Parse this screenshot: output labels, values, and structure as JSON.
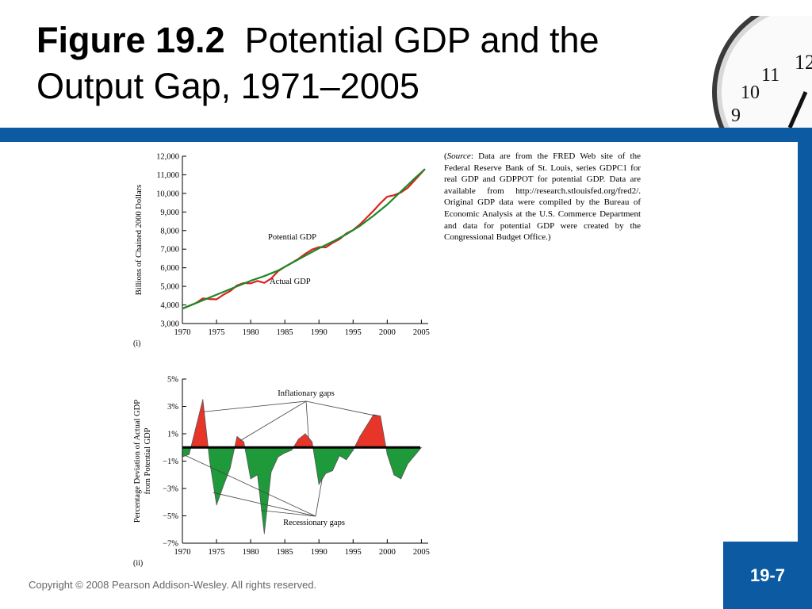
{
  "slide": {
    "title_bold": "Figure 19.2",
    "title_rest": "Potential GDP and the Output Gap, 1971–2005",
    "copyright": "Copyright © 2008 Pearson Addison-Wesley. All rights reserved.",
    "page_number": "19-7",
    "accent_color": "#0b5aa2"
  },
  "source_note": {
    "prefix": "(",
    "source_word": "Source",
    "body": ": Data are from the FRED Web site of the Federal Reserve Bank of St. Louis, series GDPC1 for real GDP and GDPPOT for potential GDP. Data are available from http://research.stlouisfed.org/fred2/. Original GDP data were compiled by the Bureau of Economic Analysis at the U.S. Commerce Department and data for potential GDP were created by the Congressional Budget Office.)"
  },
  "clock": {
    "numerals": [
      "12",
      "11",
      "10",
      "9"
    ]
  },
  "chart_data": [
    {
      "type": "line",
      "panel_label": "(i)",
      "ylabel": "Billions of Chained 2000 Dollars",
      "xlim": [
        1970,
        2006
      ],
      "ylim": [
        3000,
        12000
      ],
      "xticks": [
        1970,
        1975,
        1980,
        1985,
        1990,
        1995,
        2000,
        2005
      ],
      "xtick_labels": [
        "1970",
        "1975",
        "1980",
        "1985",
        "1990",
        "1995",
        "2000",
        "2005"
      ],
      "yticks": [
        3000,
        4000,
        5000,
        6000,
        7000,
        8000,
        9000,
        10000,
        11000,
        12000
      ],
      "ytick_labels": [
        "3,000",
        "4,000",
        "5,000",
        "6,000",
        "7,000",
        "8,000",
        "9,000",
        "10,000",
        "11,000",
        "12,000"
      ],
      "series": [
        {
          "name": "Potential GDP",
          "color": "#1a8a2a",
          "x": [
            1970,
            1972,
            1974,
            1976,
            1978,
            1980,
            1982,
            1984,
            1986,
            1988,
            1990,
            1992,
            1994,
            1996,
            1998,
            2000,
            2002,
            2004,
            2005.5
          ],
          "values": [
            3800,
            4100,
            4400,
            4700,
            5000,
            5300,
            5550,
            5850,
            6250,
            6650,
            7050,
            7400,
            7800,
            8250,
            8800,
            9400,
            10100,
            10800,
            11300
          ]
        },
        {
          "name": "Actual GDP",
          "color": "#e02020",
          "x": [
            1970,
            1972,
            1973,
            1974,
            1975,
            1976,
            1977,
            1978,
            1979,
            1980,
            1981,
            1982,
            1983,
            1984,
            1985,
            1986,
            1987,
            1988,
            1989,
            1990,
            1991,
            1992,
            1993,
            1994,
            1995,
            1996,
            1997,
            1998,
            1999,
            2000,
            2001,
            2002,
            2003,
            2004,
            2005.5
          ],
          "values": [
            3800,
            4100,
            4350,
            4320,
            4300,
            4550,
            4750,
            5050,
            5180,
            5160,
            5290,
            5190,
            5420,
            5810,
            6050,
            6260,
            6480,
            6750,
            6980,
            7110,
            7100,
            7340,
            7540,
            7840,
            8030,
            8330,
            8700,
            9070,
            9470,
            9820,
            9900,
            10050,
            10300,
            10700,
            11300
          ]
        }
      ],
      "annotations": [
        "Potential GDP",
        "Actual GDP"
      ]
    },
    {
      "type": "area",
      "panel_label": "(ii)",
      "ylabel": "Percentage Deviation of Actual GDP from Potential GDP",
      "xlim": [
        1970,
        2006
      ],
      "ylim": [
        -7,
        5
      ],
      "xticks": [
        1970,
        1975,
        1980,
        1985,
        1990,
        1995,
        2000,
        2005
      ],
      "xtick_labels": [
        "1970",
        "1975",
        "1980",
        "1985",
        "1990",
        "1995",
        "2000",
        "2005"
      ],
      "yticks": [
        5,
        3,
        1,
        -1,
        -3,
        -5,
        -7
      ],
      "ytick_labels": [
        "5%",
        "3%",
        "1%",
        "−1%",
        "−3%",
        "−5%",
        "−7%"
      ],
      "positive_color": "#e8352a",
      "negative_color": "#1f9a3a",
      "series": [
        {
          "name": "Output gap",
          "x": [
            1970,
            1971,
            1972,
            1973,
            1974,
            1975,
            1976,
            1977,
            1978,
            1979,
            1980,
            1981,
            1982,
            1983,
            1984,
            1985,
            1986,
            1987,
            1988,
            1989,
            1990,
            1991,
            1992,
            1993,
            1994,
            1995,
            1996,
            1997,
            1998,
            1999,
            2000,
            2001,
            2002,
            2003,
            2004,
            2005
          ],
          "values": [
            -0.7,
            -0.5,
            1.5,
            3.5,
            -1.0,
            -4.2,
            -2.8,
            -1.5,
            0.8,
            0.4,
            -2.3,
            -2.0,
            -6.3,
            -1.8,
            -0.7,
            -0.4,
            -0.2,
            0.6,
            1.0,
            0.4,
            -2.7,
            -1.9,
            -1.7,
            -0.6,
            -0.9,
            -0.2,
            0.8,
            1.6,
            2.4,
            2.3,
            -0.5,
            -2.0,
            -2.3,
            -1.2,
            -0.6,
            0.0
          ]
        }
      ],
      "annotations": [
        "Inflationary gaps",
        "Recessionary gaps"
      ]
    }
  ]
}
